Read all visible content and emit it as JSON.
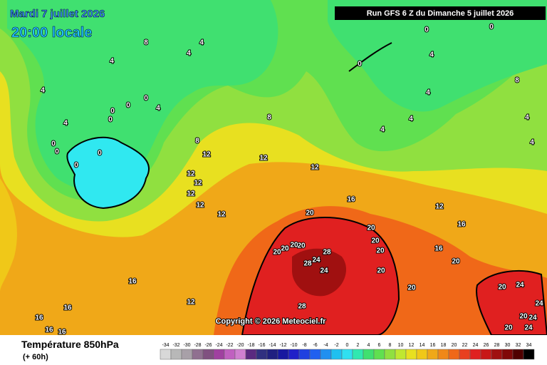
{
  "header": {
    "date": "Mardi 7 juillet 2026",
    "time": "20:00 locale",
    "run": "Run GFS 6 Z du Dimanche 5 juillet 2026"
  },
  "copyright": "Copyright © 2026 Meteociel.fr",
  "footer": {
    "title": "Température 850hPa",
    "subtitle": "(+ 60h)"
  },
  "legend": {
    "values": [
      -34,
      -32,
      -30,
      -28,
      -26,
      -24,
      -22,
      -20,
      -18,
      -16,
      -14,
      -12,
      -10,
      -8,
      -6,
      -4,
      -2,
      0,
      2,
      4,
      6,
      8,
      10,
      12,
      14,
      16,
      18,
      20,
      22,
      24,
      26,
      28,
      30,
      32,
      34
    ],
    "colors": [
      "#d8d8d8",
      "#b8b8b8",
      "#a8a0a8",
      "#907090",
      "#805080",
      "#a040a0",
      "#c060c0",
      "#d080d0",
      "#5a2a80",
      "#303080",
      "#202080",
      "#1818a0",
      "#2020c8",
      "#2040e0",
      "#2060f0",
      "#2090f0",
      "#20c0f0",
      "#30e0f0",
      "#30e8b0",
      "#40e070",
      "#60e050",
      "#90e040",
      "#c0e830",
      "#e8e020",
      "#f0c818",
      "#f0a818",
      "#f08818",
      "#f06818",
      "#e84020",
      "#e02020",
      "#c81818",
      "#a01010",
      "#800808",
      "#500000",
      "#000000"
    ]
  },
  "map_labels": [
    8,
    4,
    4,
    4,
    4,
    0,
    0,
    0,
    0,
    0,
    0,
    0,
    0,
    4,
    4,
    8,
    8,
    12,
    12,
    12,
    12,
    12,
    12,
    12,
    12,
    16,
    0,
    4,
    4,
    4,
    4,
    0,
    0,
    8,
    4,
    4,
    20,
    20,
    20,
    20,
    20,
    28,
    28,
    24,
    24,
    20,
    20,
    20,
    20,
    20,
    20,
    16,
    16,
    12,
    28,
    12,
    16,
    16,
    16,
    16,
    16,
    20,
    24,
    20,
    24,
    24,
    20,
    24
  ]
}
